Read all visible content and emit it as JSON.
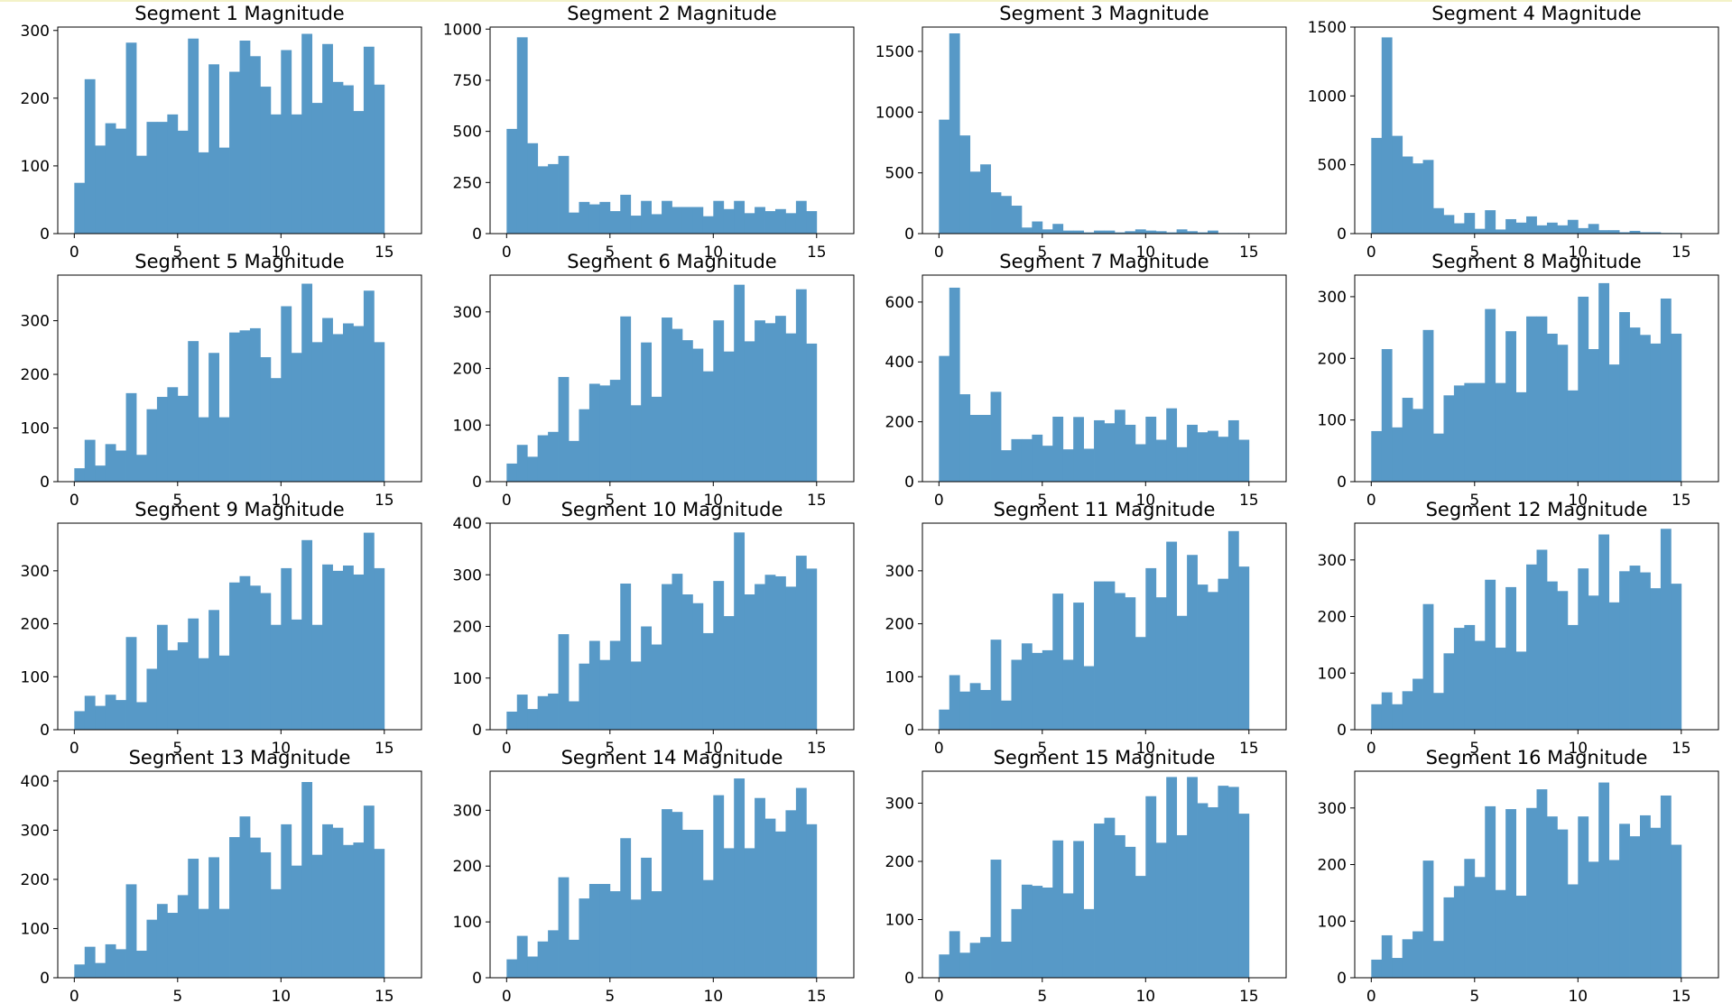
{
  "chart_data": [
    {
      "type": "bar",
      "title": "Segment 1 Magnitude",
      "xlabel": "",
      "ylabel": "",
      "xlim": [
        -0.8,
        16.8
      ],
      "ylim": [
        0,
        305
      ],
      "xticks": [
        0,
        5,
        10,
        15
      ],
      "yticks": [
        0,
        100,
        200,
        300
      ],
      "bin_start": 0,
      "bin_width": 0.5,
      "color": "#5799c7",
      "values": [
        75,
        228,
        130,
        163,
        155,
        282,
        115,
        165,
        165,
        176,
        152,
        288,
        120,
        250,
        127,
        239,
        285,
        262,
        217,
        176,
        271,
        176,
        295,
        193,
        280,
        224,
        219,
        181,
        276,
        220
      ]
    },
    {
      "type": "bar",
      "title": "Segment 2 Magnitude",
      "xlabel": "",
      "ylabel": "",
      "xlim": [
        -0.8,
        16.8
      ],
      "ylim": [
        0,
        1010
      ],
      "xticks": [
        0,
        5,
        10,
        15
      ],
      "yticks": [
        0,
        250,
        500,
        750,
        1000
      ],
      "bin_start": 0,
      "bin_width": 0.5,
      "color": "#5799c7",
      "values": [
        512,
        960,
        442,
        329,
        340,
        380,
        103,
        155,
        143,
        155,
        110,
        190,
        88,
        160,
        95,
        160,
        130,
        130,
        130,
        85,
        160,
        120,
        160,
        100,
        130,
        110,
        120,
        100,
        160,
        110
      ]
    },
    {
      "type": "bar",
      "title": "Segment 3 Magnitude",
      "xlabel": "",
      "ylabel": "",
      "xlim": [
        -0.8,
        16.8
      ],
      "ylim": [
        0,
        1700
      ],
      "xticks": [
        0,
        5,
        10,
        15
      ],
      "yticks": [
        0,
        500,
        1000,
        1500
      ],
      "bin_start": 0,
      "bin_width": 0.5,
      "color": "#5799c7",
      "values": [
        938,
        1648,
        808,
        510,
        570,
        340,
        310,
        230,
        50,
        100,
        35,
        80,
        25,
        25,
        10,
        25,
        25,
        10,
        20,
        35,
        25,
        20,
        10,
        35,
        20,
        10,
        25,
        5,
        5,
        5
      ]
    },
    {
      "type": "bar",
      "title": "Segment 4 Magnitude",
      "xlabel": "",
      "ylabel": "",
      "xlim": [
        -0.8,
        16.8
      ],
      "ylim": [
        0,
        1500
      ],
      "xticks": [
        0,
        5,
        10,
        15
      ],
      "yticks": [
        0,
        500,
        1000,
        1500
      ],
      "bin_start": 0,
      "bin_width": 0.5,
      "color": "#5799c7",
      "values": [
        695,
        1425,
        710,
        560,
        510,
        535,
        185,
        135,
        75,
        150,
        35,
        170,
        30,
        105,
        80,
        125,
        60,
        80,
        60,
        100,
        40,
        70,
        25,
        25,
        10,
        20,
        10,
        10,
        5,
        5
      ]
    },
    {
      "type": "bar",
      "title": "Segment 5 Magnitude",
      "xlabel": "",
      "ylabel": "",
      "xlim": [
        -0.8,
        16.8
      ],
      "ylim": [
        0,
        385
      ],
      "xticks": [
        0,
        5,
        10,
        15
      ],
      "yticks": [
        0,
        100,
        200,
        300
      ],
      "bin_start": 0,
      "bin_width": 0.5,
      "color": "#5799c7",
      "values": [
        25,
        78,
        30,
        70,
        58,
        165,
        50,
        135,
        158,
        176,
        160,
        262,
        120,
        240,
        120,
        278,
        282,
        286,
        232,
        193,
        327,
        240,
        369,
        260,
        305,
        275,
        295,
        290,
        356,
        260
      ]
    },
    {
      "type": "bar",
      "title": "Segment 6 Magnitude",
      "xlabel": "",
      "ylabel": "",
      "xlim": [
        -0.8,
        16.8
      ],
      "ylim": [
        0,
        365
      ],
      "xticks": [
        0,
        5,
        10,
        15
      ],
      "yticks": [
        0,
        100,
        200,
        300
      ],
      "bin_start": 0,
      "bin_width": 0.5,
      "color": "#5799c7",
      "values": [
        32,
        65,
        44,
        82,
        88,
        185,
        72,
        128,
        173,
        170,
        180,
        292,
        135,
        246,
        150,
        290,
        270,
        250,
        235,
        195,
        285,
        230,
        348,
        248,
        285,
        280,
        293,
        262,
        340,
        244
      ]
    },
    {
      "type": "bar",
      "title": "Segment 7 Magnitude",
      "xlabel": "",
      "ylabel": "",
      "xlim": [
        -0.8,
        16.8
      ],
      "ylim": [
        0,
        690
      ],
      "xticks": [
        0,
        5,
        10,
        15
      ],
      "yticks": [
        0,
        200,
        400,
        600
      ],
      "bin_start": 0,
      "bin_width": 0.5,
      "color": "#5799c7",
      "values": [
        420,
        648,
        292,
        223,
        223,
        300,
        105,
        142,
        142,
        157,
        120,
        217,
        108,
        216,
        110,
        205,
        195,
        240,
        190,
        125,
        217,
        140,
        245,
        115,
        190,
        165,
        170,
        150,
        205,
        140
      ]
    },
    {
      "type": "bar",
      "title": "Segment 8 Magnitude",
      "xlabel": "",
      "ylabel": "",
      "xlim": [
        -0.8,
        16.8
      ],
      "ylim": [
        0,
        335
      ],
      "xticks": [
        0,
        5,
        10,
        15
      ],
      "yticks": [
        0,
        100,
        200,
        300
      ],
      "bin_start": 0,
      "bin_width": 0.5,
      "color": "#5799c7",
      "values": [
        82,
        215,
        88,
        136,
        118,
        246,
        78,
        140,
        156,
        160,
        160,
        280,
        160,
        244,
        145,
        268,
        268,
        240,
        222,
        148,
        300,
        215,
        322,
        190,
        275,
        250,
        238,
        224,
        297,
        240
      ]
    },
    {
      "type": "bar",
      "title": "Segment 9 Magnitude",
      "xlabel": "",
      "ylabel": "",
      "xlim": [
        -0.8,
        16.8
      ],
      "ylim": [
        0,
        390
      ],
      "xticks": [
        0,
        5,
        10,
        15
      ],
      "yticks": [
        0,
        100,
        200,
        300
      ],
      "bin_start": 0,
      "bin_width": 0.5,
      "color": "#5799c7",
      "values": [
        35,
        64,
        45,
        66,
        56,
        175,
        52,
        115,
        198,
        150,
        165,
        210,
        135,
        226,
        140,
        278,
        290,
        272,
        258,
        198,
        305,
        208,
        358,
        198,
        312,
        300,
        310,
        293,
        372,
        305
      ]
    },
    {
      "type": "bar",
      "title": "Segment 10 Magnitude",
      "xlabel": "",
      "ylabel": "",
      "xlim": [
        -0.8,
        16.8
      ],
      "ylim": [
        0,
        400
      ],
      "xticks": [
        0,
        5,
        10,
        15
      ],
      "yticks": [
        0,
        100,
        200,
        300,
        400
      ],
      "bin_start": 0,
      "bin_width": 0.5,
      "color": "#5799c7",
      "values": [
        35,
        68,
        40,
        65,
        70,
        185,
        55,
        128,
        172,
        135,
        172,
        283,
        132,
        200,
        165,
        282,
        302,
        262,
        245,
        187,
        288,
        220,
        382,
        262,
        282,
        300,
        297,
        277,
        337,
        312
      ]
    },
    {
      "type": "bar",
      "title": "Segment 11 Magnitude",
      "xlabel": "",
      "ylabel": "",
      "xlim": [
        -0.8,
        16.8
      ],
      "ylim": [
        0,
        390
      ],
      "xticks": [
        0,
        5,
        10,
        15
      ],
      "yticks": [
        0,
        100,
        200,
        300
      ],
      "bin_start": 0,
      "bin_width": 0.5,
      "color": "#5799c7",
      "values": [
        38,
        103,
        72,
        88,
        75,
        170,
        55,
        132,
        163,
        145,
        150,
        257,
        132,
        240,
        120,
        280,
        280,
        258,
        250,
        175,
        305,
        250,
        355,
        215,
        330,
        274,
        260,
        285,
        375,
        308
      ]
    },
    {
      "type": "bar",
      "title": "Segment 12 Magnitude",
      "xlabel": "",
      "ylabel": "",
      "xlim": [
        -0.8,
        16.8
      ],
      "ylim": [
        0,
        365
      ],
      "xticks": [
        0,
        5,
        10,
        15
      ],
      "yticks": [
        0,
        100,
        200,
        300
      ],
      "bin_start": 0,
      "bin_width": 0.5,
      "color": "#5799c7",
      "values": [
        45,
        66,
        45,
        68,
        90,
        222,
        65,
        135,
        180,
        185,
        157,
        265,
        145,
        252,
        138,
        292,
        318,
        262,
        245,
        185,
        285,
        237,
        345,
        225,
        280,
        290,
        278,
        250,
        355,
        258
      ]
    },
    {
      "type": "bar",
      "title": "Segment 13 Magnitude",
      "xlabel": "",
      "ylabel": "",
      "xlim": [
        -0.8,
        16.8
      ],
      "ylim": [
        0,
        420
      ],
      "xticks": [
        0,
        5,
        10,
        15
      ],
      "yticks": [
        0,
        100,
        200,
        300,
        400
      ],
      "bin_start": 0,
      "bin_width": 0.5,
      "color": "#5799c7",
      "values": [
        27,
        63,
        30,
        68,
        58,
        190,
        55,
        118,
        150,
        132,
        168,
        242,
        140,
        245,
        140,
        286,
        328,
        285,
        255,
        180,
        312,
        228,
        398,
        250,
        312,
        305,
        270,
        275,
        350,
        262
      ]
    },
    {
      "type": "bar",
      "title": "Segment 14 Magnitude",
      "xlabel": "",
      "ylabel": "",
      "xlim": [
        -0.8,
        16.8
      ],
      "ylim": [
        0,
        370
      ],
      "xticks": [
        0,
        5,
        10,
        15
      ],
      "yticks": [
        0,
        100,
        200,
        300
      ],
      "bin_start": 0,
      "bin_width": 0.5,
      "color": "#5799c7",
      "values": [
        33,
        75,
        38,
        65,
        85,
        180,
        68,
        142,
        168,
        168,
        155,
        250,
        140,
        215,
        155,
        302,
        297,
        265,
        265,
        175,
        327,
        232,
        357,
        232,
        322,
        285,
        262,
        300,
        340,
        275
      ]
    },
    {
      "type": "bar",
      "title": "Segment 15 Magnitude",
      "xlabel": "",
      "ylabel": "",
      "xlim": [
        -0.8,
        16.8
      ],
      "ylim": [
        0,
        355
      ],
      "xticks": [
        0,
        5,
        10,
        15
      ],
      "yticks": [
        0,
        100,
        200,
        300
      ],
      "bin_start": 0,
      "bin_width": 0.5,
      "color": "#5799c7",
      "values": [
        40,
        80,
        43,
        60,
        70,
        203,
        62,
        118,
        160,
        158,
        155,
        236,
        145,
        235,
        118,
        265,
        275,
        245,
        225,
        175,
        312,
        232,
        345,
        245,
        345,
        300,
        293,
        330,
        328,
        282
      ]
    },
    {
      "type": "bar",
      "title": "Segment 16 Magnitude",
      "xlabel": "",
      "ylabel": "",
      "xlim": [
        -0.8,
        16.8
      ],
      "ylim": [
        0,
        365
      ],
      "xticks": [
        0,
        5,
        10,
        15
      ],
      "yticks": [
        0,
        100,
        200,
        300
      ],
      "bin_start": 0,
      "bin_width": 0.5,
      "color": "#5799c7",
      "values": [
        32,
        75,
        35,
        68,
        82,
        207,
        65,
        142,
        162,
        210,
        178,
        303,
        155,
        298,
        145,
        300,
        333,
        285,
        262,
        165,
        285,
        205,
        345,
        208,
        272,
        250,
        287,
        265,
        322,
        235
      ]
    }
  ]
}
